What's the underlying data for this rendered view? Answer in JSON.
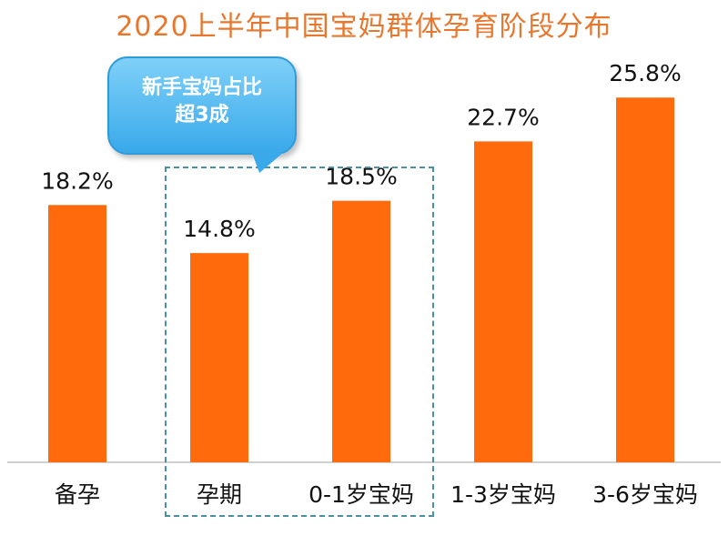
{
  "title": "2020上半年中国宝妈群体孕育阶段分布",
  "callout": {
    "line1": "新手宝妈占比",
    "line2": "超3成"
  },
  "colors": {
    "bar": "#ff6a0d",
    "title": "#e8772e",
    "callout": "#39a9ea"
  },
  "chart_data": {
    "type": "bar",
    "title": "2020上半年中国宝妈群体孕育阶段分布",
    "categories": [
      "备孕",
      "孕期",
      "0-1岁宝妈",
      "1-3岁宝妈",
      "3-6岁宝妈"
    ],
    "values": [
      18.2,
      14.8,
      18.5,
      22.7,
      25.8
    ],
    "value_labels": [
      "18.2%",
      "14.8%",
      "18.5%",
      "22.7%",
      "25.8%"
    ],
    "unit": "%",
    "xlabel": "",
    "ylabel": "",
    "ylim": [
      0,
      30
    ],
    "grid": false,
    "highlighted_categories": [
      "孕期",
      "0-1岁宝妈"
    ]
  }
}
